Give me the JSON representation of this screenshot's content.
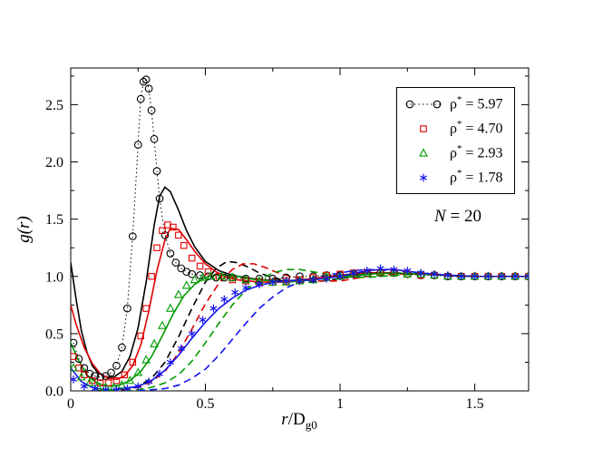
{
  "figure": {
    "background": "#ffffff",
    "frame_color": "#000000"
  },
  "chart_data": {
    "type": "line",
    "title": "",
    "xlabel_parts": {
      "var": "r",
      "mid": "/D",
      "sub": "g0"
    },
    "ylabel": "g(r)",
    "annotation": {
      "var": "N",
      "rest": " = 20"
    },
    "xlim": [
      0,
      1.7
    ],
    "ylim": [
      0,
      2.82
    ],
    "xticks": [
      0,
      0.5,
      1,
      1.5
    ],
    "xtick_labels": [
      "0",
      "0.5",
      "1",
      "1.5"
    ],
    "yticks": [
      0,
      0.5,
      1,
      1.5,
      2,
      2.5
    ],
    "ytick_labels": [
      "0.0",
      "0.5",
      "1.0",
      "1.5",
      "2.0",
      "2.5"
    ],
    "xminor_step": 0.25,
    "yminor_step": 0.25,
    "grid": false,
    "legend": {
      "position": "top-right",
      "entries": [
        {
          "rho": "ρ",
          "sup": "*",
          "val": " = 5.97",
          "marker": "circle",
          "line": "dotted",
          "color": "#000000"
        },
        {
          "rho": "ρ",
          "sup": "*",
          "val": " = 4.70",
          "marker": "square",
          "line": "none",
          "color": "#e00000"
        },
        {
          "rho": "ρ",
          "sup": "*",
          "val": " = 2.93",
          "marker": "triangle",
          "line": "none",
          "color": "#009b00"
        },
        {
          "rho": "ρ",
          "sup": "*",
          "val": " = 1.78",
          "marker": "star",
          "line": "none",
          "color": "#1414ee"
        }
      ]
    },
    "series": [
      {
        "name": "theory-dashed-rho-5.97",
        "marker": "none",
        "line": "dashed",
        "color": "#000000",
        "width": 1.6,
        "x": [
          0.1,
          0.15,
          0.2,
          0.25,
          0.3,
          0.35,
          0.4,
          0.45,
          0.5,
          0.54,
          0.58,
          0.62,
          0.66,
          0.7,
          0.75,
          0.8,
          0.85,
          0.9,
          1.0,
          1.1,
          1.2,
          1.3,
          1.4,
          1.5,
          1.6,
          1.7
        ],
        "y": [
          0.0,
          0.0,
          0.01,
          0.04,
          0.11,
          0.25,
          0.47,
          0.72,
          0.95,
          1.07,
          1.13,
          1.12,
          1.08,
          1.03,
          0.99,
          0.96,
          0.95,
          0.95,
          0.98,
          1.02,
          1.03,
          1.02,
          1.01,
          1.0,
          1.0,
          1.0
        ]
      },
      {
        "name": "theory-dashed-rho-4.70",
        "marker": "none",
        "line": "dashed",
        "color": "#e00000",
        "width": 1.6,
        "x": [
          0.15,
          0.2,
          0.25,
          0.3,
          0.35,
          0.4,
          0.45,
          0.5,
          0.55,
          0.6,
          0.64,
          0.68,
          0.72,
          0.76,
          0.8,
          0.85,
          0.9,
          1.0,
          1.1,
          1.2,
          1.3,
          1.4,
          1.5,
          1.6,
          1.7
        ],
        "y": [
          0.0,
          0.01,
          0.03,
          0.08,
          0.17,
          0.33,
          0.54,
          0.76,
          0.94,
          1.06,
          1.11,
          1.11,
          1.08,
          1.04,
          1.01,
          0.98,
          0.96,
          0.96,
          1.0,
          1.02,
          1.02,
          1.01,
          1.0,
          1.0,
          1.0
        ]
      },
      {
        "name": "theory-dashed-rho-2.93",
        "marker": "none",
        "line": "dashed",
        "color": "#009b00",
        "width": 1.6,
        "x": [
          0.2,
          0.25,
          0.3,
          0.35,
          0.4,
          0.45,
          0.5,
          0.55,
          0.6,
          0.65,
          0.7,
          0.75,
          0.8,
          0.85,
          0.9,
          0.95,
          1.0,
          1.1,
          1.2,
          1.3,
          1.4,
          1.5,
          1.6,
          1.7
        ],
        "y": [
          0.0,
          0.01,
          0.03,
          0.07,
          0.14,
          0.26,
          0.42,
          0.59,
          0.75,
          0.88,
          0.97,
          1.03,
          1.06,
          1.06,
          1.04,
          1.02,
          1.0,
          0.99,
          1.01,
          1.02,
          1.01,
          1.0,
          1.0,
          1.0
        ]
      },
      {
        "name": "theory-dashed-rho-1.78",
        "marker": "none",
        "line": "dashed",
        "color": "#1414ee",
        "width": 1.6,
        "x": [
          0.25,
          0.3,
          0.35,
          0.4,
          0.45,
          0.5,
          0.55,
          0.6,
          0.65,
          0.7,
          0.75,
          0.8,
          0.85,
          0.9,
          0.95,
          1.0,
          1.05,
          1.1,
          1.2,
          1.3,
          1.4,
          1.5,
          1.6,
          1.7
        ],
        "y": [
          0.0,
          0.01,
          0.02,
          0.05,
          0.11,
          0.19,
          0.31,
          0.45,
          0.59,
          0.72,
          0.82,
          0.9,
          0.95,
          0.99,
          1.01,
          1.03,
          1.05,
          1.06,
          1.05,
          1.03,
          1.01,
          1.0,
          1.0,
          1.0
        ]
      },
      {
        "name": "theory-solid-rho-5.97",
        "marker": "none",
        "line": "solid",
        "color": "#000000",
        "width": 1.6,
        "x": [
          0,
          0.02,
          0.04,
          0.06,
          0.08,
          0.1,
          0.13,
          0.16,
          0.19,
          0.22,
          0.25,
          0.28,
          0.31,
          0.33,
          0.35,
          0.37,
          0.4,
          0.43,
          0.46,
          0.5,
          0.55,
          0.6,
          0.65,
          0.7,
          0.8,
          0.9,
          1.0,
          1.1,
          1.2,
          1.3,
          1.4,
          1.5,
          1.6,
          1.7
        ],
        "y": [
          1.12,
          0.8,
          0.52,
          0.34,
          0.22,
          0.16,
          0.12,
          0.12,
          0.17,
          0.3,
          0.55,
          0.95,
          1.45,
          1.7,
          1.78,
          1.74,
          1.58,
          1.4,
          1.26,
          1.13,
          1.05,
          1.01,
          0.99,
          0.97,
          0.96,
          0.98,
          1.01,
          1.03,
          1.03,
          1.02,
          1.01,
          1.0,
          1.0,
          1.0
        ]
      },
      {
        "name": "theory-solid-rho-4.70",
        "marker": "none",
        "line": "solid",
        "color": "#e00000",
        "width": 1.6,
        "x": [
          0,
          0.02,
          0.05,
          0.08,
          0.11,
          0.14,
          0.17,
          0.2,
          0.23,
          0.26,
          0.29,
          0.32,
          0.35,
          0.37,
          0.4,
          0.43,
          0.46,
          0.5,
          0.54,
          0.58,
          0.62,
          0.66,
          0.7,
          0.8,
          0.9,
          1.0,
          1.1,
          1.2,
          1.3,
          1.4,
          1.5,
          1.6,
          1.7
        ],
        "y": [
          0.75,
          0.58,
          0.38,
          0.24,
          0.15,
          0.11,
          0.1,
          0.13,
          0.22,
          0.4,
          0.7,
          1.05,
          1.32,
          1.42,
          1.41,
          1.32,
          1.22,
          1.11,
          1.04,
          0.99,
          0.97,
          0.96,
          0.95,
          0.95,
          0.98,
          1.01,
          1.03,
          1.03,
          1.02,
          1.01,
          1.0,
          1.0,
          1.0
        ]
      },
      {
        "name": "theory-solid-rho-2.93",
        "marker": "none",
        "line": "solid",
        "color": "#009b00",
        "width": 1.6,
        "x": [
          0,
          0.03,
          0.06,
          0.09,
          0.12,
          0.15,
          0.18,
          0.22,
          0.26,
          0.3,
          0.34,
          0.38,
          0.42,
          0.46,
          0.5,
          0.54,
          0.58,
          0.62,
          0.66,
          0.7,
          0.8,
          0.9,
          1.0,
          1.1,
          1.2,
          1.3,
          1.4,
          1.5,
          1.6,
          1.7
        ],
        "y": [
          0.42,
          0.26,
          0.14,
          0.08,
          0.05,
          0.04,
          0.05,
          0.09,
          0.17,
          0.3,
          0.48,
          0.67,
          0.83,
          0.93,
          0.99,
          1.01,
          1.01,
          1.0,
          0.98,
          0.97,
          0.95,
          0.97,
          1.0,
          1.02,
          1.03,
          1.02,
          1.01,
          1.0,
          1.0,
          1.0
        ]
      },
      {
        "name": "theory-solid-rho-1.78",
        "marker": "none",
        "line": "solid",
        "color": "#1414ee",
        "width": 1.6,
        "x": [
          0,
          0.04,
          0.08,
          0.12,
          0.16,
          0.2,
          0.25,
          0.3,
          0.35,
          0.4,
          0.45,
          0.5,
          0.55,
          0.6,
          0.65,
          0.7,
          0.75,
          0.8,
          0.9,
          1.0,
          1.1,
          1.15,
          1.2,
          1.3,
          1.4,
          1.5,
          1.6,
          1.7
        ],
        "y": [
          0.2,
          0.08,
          0.03,
          0.01,
          0.01,
          0.02,
          0.04,
          0.09,
          0.18,
          0.31,
          0.46,
          0.6,
          0.72,
          0.81,
          0.88,
          0.92,
          0.95,
          0.96,
          0.97,
          1.0,
          1.05,
          1.06,
          1.06,
          1.03,
          1.01,
          1.0,
          1.0,
          1.0
        ]
      },
      {
        "name": "sim-rho-5.97",
        "marker": "circle",
        "line": "dotted",
        "color": "#000000",
        "width": 1,
        "x": [
          0.01,
          0.03,
          0.05,
          0.07,
          0.09,
          0.11,
          0.13,
          0.15,
          0.17,
          0.19,
          0.21,
          0.23,
          0.25,
          0.26,
          0.27,
          0.28,
          0.29,
          0.3,
          0.31,
          0.32,
          0.33,
          0.35,
          0.37,
          0.39,
          0.41,
          0.43,
          0.45,
          0.48,
          0.51,
          0.54,
          0.57,
          0.6,
          0.65,
          0.7,
          0.75,
          0.8,
          0.85,
          0.9,
          0.95,
          1.0,
          1.05,
          1.1,
          1.15,
          1.2,
          1.25,
          1.3,
          1.35,
          1.4,
          1.45,
          1.5,
          1.55,
          1.6,
          1.65,
          1.7
        ],
        "y": [
          0.42,
          0.28,
          0.2,
          0.15,
          0.13,
          0.12,
          0.13,
          0.16,
          0.22,
          0.38,
          0.72,
          1.35,
          2.15,
          2.55,
          2.7,
          2.72,
          2.64,
          2.45,
          2.2,
          1.92,
          1.68,
          1.36,
          1.2,
          1.12,
          1.07,
          1.04,
          1.02,
          1.01,
          1.0,
          0.99,
          0.99,
          0.99,
          0.98,
          0.98,
          0.98,
          0.99,
          1.0,
          1.0,
          1.01,
          1.01,
          1.02,
          1.03,
          1.03,
          1.03,
          1.02,
          1.01,
          1.01,
          1.0,
          1.0,
          1.0,
          1.0,
          1.0,
          1.0,
          1.0
        ]
      },
      {
        "name": "sim-rho-4.70",
        "marker": "square",
        "line": "none",
        "color": "#e00000",
        "width": 1,
        "x": [
          0.01,
          0.03,
          0.05,
          0.08,
          0.11,
          0.14,
          0.17,
          0.2,
          0.23,
          0.26,
          0.28,
          0.3,
          0.32,
          0.34,
          0.36,
          0.38,
          0.4,
          0.42,
          0.45,
          0.48,
          0.51,
          0.55,
          0.6,
          0.65,
          0.7,
          0.75,
          0.8,
          0.85,
          0.9,
          0.95,
          1.0,
          1.05,
          1.1,
          1.15,
          1.2,
          1.25,
          1.3,
          1.35,
          1.4,
          1.45,
          1.5,
          1.55,
          1.6,
          1.65,
          1.7
        ],
        "y": [
          0.3,
          0.2,
          0.14,
          0.09,
          0.07,
          0.07,
          0.09,
          0.14,
          0.25,
          0.48,
          0.72,
          1.0,
          1.25,
          1.4,
          1.45,
          1.43,
          1.36,
          1.27,
          1.16,
          1.09,
          1.04,
          1.0,
          0.97,
          0.96,
          0.95,
          0.95,
          0.96,
          0.97,
          0.99,
          1.01,
          1.02,
          1.03,
          1.03,
          1.03,
          1.03,
          1.02,
          1.01,
          1.01,
          1.0,
          1.0,
          1.0,
          1.0,
          1.0,
          1.0,
          1.0
        ]
      },
      {
        "name": "sim-rho-2.93",
        "marker": "triangle",
        "line": "none",
        "color": "#009b00",
        "width": 1,
        "x": [
          0.01,
          0.04,
          0.07,
          0.1,
          0.13,
          0.16,
          0.19,
          0.22,
          0.25,
          0.28,
          0.31,
          0.34,
          0.37,
          0.4,
          0.43,
          0.46,
          0.49,
          0.52,
          0.56,
          0.6,
          0.65,
          0.7,
          0.75,
          0.8,
          0.85,
          0.9,
          0.95,
          1.0,
          1.05,
          1.1,
          1.15,
          1.2,
          1.25,
          1.3,
          1.35,
          1.4,
          1.45,
          1.5,
          1.55,
          1.6,
          1.65,
          1.7
        ],
        "y": [
          0.2,
          0.12,
          0.07,
          0.04,
          0.03,
          0.03,
          0.05,
          0.09,
          0.16,
          0.27,
          0.41,
          0.57,
          0.72,
          0.84,
          0.92,
          0.97,
          0.99,
          1.0,
          1.0,
          0.99,
          0.97,
          0.96,
          0.95,
          0.95,
          0.96,
          0.97,
          0.99,
          1.0,
          1.02,
          1.03,
          1.03,
          1.03,
          1.02,
          1.02,
          1.01,
          1.0,
          1.0,
          1.0,
          1.0,
          1.0,
          1.0,
          1.0
        ]
      },
      {
        "name": "sim-rho-1.78",
        "marker": "star",
        "line": "none",
        "color": "#1414ee",
        "width": 1,
        "x": [
          0.01,
          0.05,
          0.09,
          0.13,
          0.17,
          0.21,
          0.25,
          0.29,
          0.33,
          0.37,
          0.41,
          0.45,
          0.49,
          0.53,
          0.57,
          0.61,
          0.65,
          0.7,
          0.75,
          0.8,
          0.85,
          0.9,
          0.95,
          1.0,
          1.05,
          1.1,
          1.15,
          1.2,
          1.25,
          1.3,
          1.35,
          1.4,
          1.45,
          1.5,
          1.55,
          1.6,
          1.65,
          1.7
        ],
        "y": [
          0.1,
          0.04,
          0.02,
          0.01,
          0.01,
          0.02,
          0.04,
          0.08,
          0.15,
          0.25,
          0.37,
          0.5,
          0.62,
          0.72,
          0.8,
          0.86,
          0.9,
          0.93,
          0.95,
          0.96,
          0.96,
          0.97,
          0.98,
          1.0,
          1.03,
          1.05,
          1.07,
          1.06,
          1.05,
          1.03,
          1.02,
          1.01,
          1.0,
          1.0,
          1.0,
          1.0,
          1.0,
          1.0
        ]
      }
    ]
  }
}
